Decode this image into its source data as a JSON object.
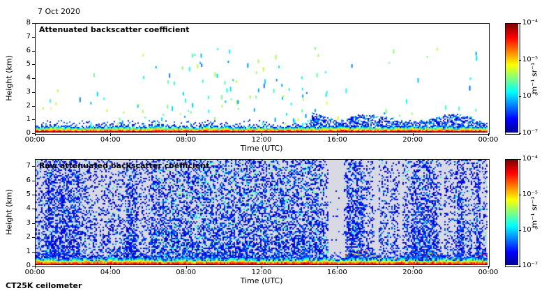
{
  "figure": {
    "date": "7 Oct 2020",
    "footer": "CT25K ceilometer",
    "background": "#ffffff"
  },
  "colormap": {
    "name": "jet",
    "stops": [
      [
        0,
        "#00008f"
      ],
      [
        0.125,
        "#0000ff"
      ],
      [
        0.375,
        "#00ffff"
      ],
      [
        0.625,
        "#ffff00"
      ],
      [
        0.875,
        "#ff0000"
      ],
      [
        1,
        "#7f0000"
      ]
    ]
  },
  "chart_data": [
    {
      "type": "heatmap",
      "title": "Attenuated backscatter coefficient",
      "xlabel": "Time (UTC)",
      "ylabel": "Height (km)",
      "x_ticks": [
        "00:00",
        "04:00",
        "08:00",
        "12:00",
        "16:00",
        "20:00",
        "00:00"
      ],
      "x_range_hours": [
        0,
        24
      ],
      "y_ticks": [
        0,
        1,
        2,
        3,
        4,
        5,
        6,
        7,
        8
      ],
      "ylim": [
        0,
        8
      ],
      "grid": false,
      "colorbar": {
        "label": "m⁻¹ sr⁻¹",
        "ticks": [
          "10⁻⁴",
          "10⁻⁵",
          "10⁻⁶",
          "10⁻⁷"
        ],
        "scale": "log"
      },
      "content_summary": "Strong aerosol layer below ~0.5 km all day (red/yellow/green near surface); scattered cloud returns 1-6 km mostly 05:30-15:30; dense low cloud/precipitation band below ~1.5 km from ~14:40 to 24:00 with embedded strong returns 16:00-19:30",
      "render_features": {
        "seed": 1337,
        "surface_layer": {
          "top_km_min": 0.28,
          "top_km_max": 0.55
        },
        "specks": {
          "count": 240,
          "km_min": 0.7,
          "km_max": 6.3,
          "dense_hours": [
            5.5,
            15.5
          ]
        },
        "evening_band": {
          "from_hour": 14.6,
          "warm_hours": [
            16.2,
            19.6
          ],
          "top_km_start": 1.5
        }
      }
    },
    {
      "type": "heatmap",
      "title": "Raw attenuated backscatter coefficient",
      "xlabel": "Time (UTC)",
      "ylabel": "Height (km)",
      "x_ticks": [
        "00:00",
        "04:00",
        "08:00",
        "12:00",
        "16:00",
        "20:00",
        "00:00"
      ],
      "x_range_hours": [
        0,
        24
      ],
      "y_ticks": [
        0,
        1,
        2,
        3,
        4,
        5,
        6,
        7
      ],
      "ylim": [
        0,
        7.5
      ],
      "grid": false,
      "colorbar": {
        "label": "m⁻¹ sr⁻¹",
        "ticks": [
          "10⁻⁴",
          "10⁻⁵",
          "10⁻⁶",
          "10⁻⁷"
        ],
        "scale": "log"
      },
      "content_summary": "Full-column background noise speckle (blue on light grey), denser during 06:00-15:00; near-white data gaps ~15:30-16:20, ~18:00, ~19:20, ~21:40; darker dense columns ~00:30-02:20, ~05:00, ~16:30-17:30, ~20:00-21:20, ~22:30; surface aerosol layer below ~0.6 km all day; strong low returns 0.2-1 km from ~16:20 to 24:00",
      "render_features": {
        "seed": 2024,
        "background": "#d9d9e3",
        "noise_density": 0.42,
        "dense_hours": [
          6.3,
          15.3
        ],
        "white_gap_hours": [
          [
            15.5,
            16.35
          ],
          [
            17.95,
            18.15
          ],
          [
            19.3,
            19.45
          ],
          [
            21.55,
            21.7
          ]
        ],
        "dense_column_hours": [
          [
            0.5,
            2.3
          ],
          [
            4.75,
            5.35
          ],
          [
            6.1,
            6.35
          ],
          [
            16.45,
            17.4
          ],
          [
            19.9,
            21.3
          ],
          [
            22.3,
            22.7
          ],
          [
            23.35,
            23.6
          ]
        ],
        "surface_layer": {
          "top_km_min": 0.3,
          "top_km_max": 0.65
        },
        "evening_band": {
          "from_hour": 16.4,
          "km_low": 0.2,
          "km_high": 1.0
        }
      }
    }
  ]
}
